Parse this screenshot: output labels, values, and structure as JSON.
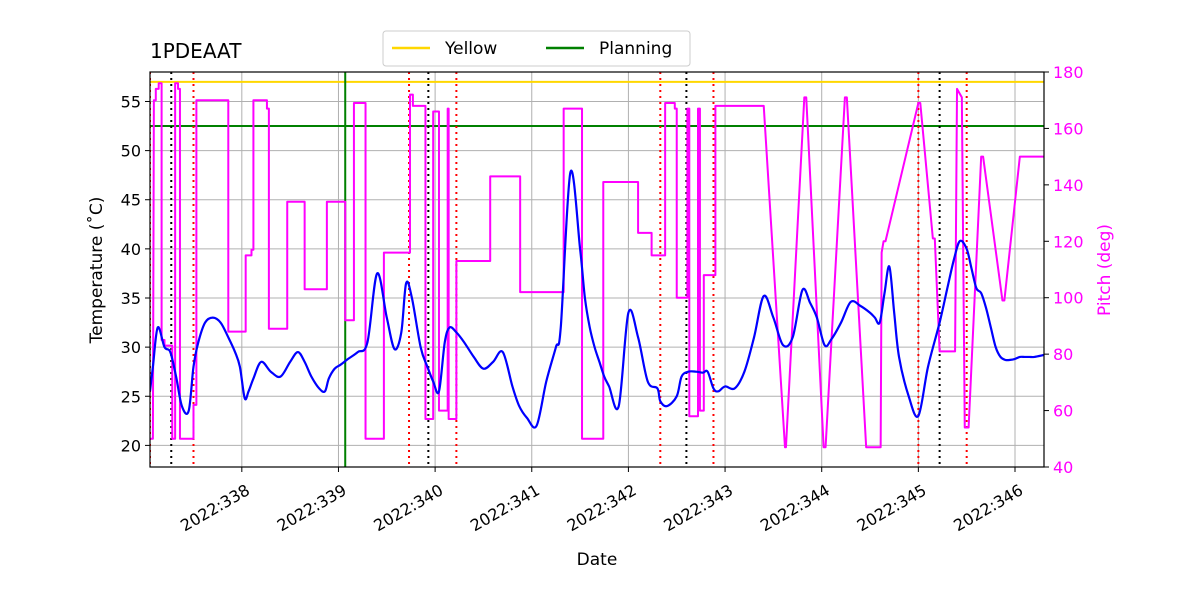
{
  "chart_data": {
    "type": "line",
    "title": "1PDEAAT",
    "xlabel": "Date",
    "ylabel_left": "Temperature ($^\\circ$C)",
    "ylabel_left_display": "Temperature (˚C)",
    "ylabel_right": "Pitch (deg)",
    "xlim": [
      337.05,
      346.3
    ],
    "ylim_left": [
      17.8,
      58
    ],
    "ylim_right": [
      40,
      180
    ],
    "x_ticks": [
      338,
      339,
      340,
      341,
      342,
      343,
      344,
      345,
      346
    ],
    "x_tick_labels": [
      "2022:338",
      "2022:339",
      "2022:340",
      "2022:341",
      "2022:342",
      "2022:343",
      "2022:344",
      "2022:345",
      "2022:346"
    ],
    "y_ticks_left": [
      20,
      25,
      30,
      35,
      40,
      45,
      50,
      55
    ],
    "y_ticks_right": [
      40,
      60,
      80,
      100,
      120,
      140,
      160,
      180
    ],
    "grid": true,
    "legend": {
      "position": "top-center-outside",
      "entries": [
        {
          "name": "Yellow",
          "color": "#ffd700"
        },
        {
          "name": "Planning",
          "color": "#008000"
        }
      ]
    },
    "reference_lines": [
      {
        "name": "Yellow",
        "axis": "left",
        "y": 57,
        "color": "#ffd700"
      },
      {
        "name": "Planning",
        "axis": "left",
        "y": 52.5,
        "color": "#008000"
      }
    ],
    "vertical_lines": {
      "green": {
        "x": [
          339.07
        ],
        "color": "#008000"
      },
      "black_dotted": {
        "x": [
          337.27,
          339.93,
          342.6,
          345.22
        ],
        "color": "#000000"
      },
      "red_dotted": {
        "x": [
          337.05,
          337.5,
          339.73,
          340.22,
          342.33,
          342.88,
          345.0,
          345.5
        ],
        "color": "#ff0000"
      }
    },
    "series": [
      {
        "name": "Temperature",
        "axis": "left",
        "color": "#0000ff",
        "x": [
          337.05,
          337.08,
          337.13,
          337.2,
          337.26,
          337.32,
          337.38,
          337.45,
          337.5,
          337.55,
          337.62,
          337.7,
          337.78,
          337.86,
          337.93,
          337.98,
          338.03,
          338.07,
          338.12,
          338.2,
          338.3,
          338.4,
          338.5,
          338.58,
          338.65,
          338.72,
          338.8,
          338.86,
          338.9,
          338.96,
          339.02,
          339.1,
          339.2,
          339.3,
          339.4,
          339.5,
          339.58,
          339.65,
          339.7,
          339.76,
          339.85,
          339.92,
          339.98,
          340.04,
          340.1,
          340.15,
          340.22,
          340.3,
          340.4,
          340.5,
          340.6,
          340.7,
          340.8,
          340.87,
          340.95,
          341.05,
          341.15,
          341.25,
          341.3,
          341.4,
          341.5,
          341.55,
          341.6,
          341.65,
          341.7,
          341.75,
          341.8,
          341.9,
          342.0,
          342.1,
          342.2,
          342.3,
          342.33,
          342.4,
          342.5,
          342.55,
          342.62,
          342.7,
          342.77,
          342.82,
          342.88,
          342.93,
          343.0,
          343.1,
          343.2,
          343.3,
          343.4,
          343.5,
          343.6,
          343.7,
          343.8,
          343.88,
          343.95,
          344.03,
          344.1,
          344.2,
          344.3,
          344.4,
          344.5,
          344.55,
          344.6,
          344.65,
          344.7,
          344.75,
          344.8,
          344.9,
          345.0,
          345.1,
          345.22,
          345.3,
          345.37,
          345.43,
          345.5,
          345.55,
          345.6,
          345.65,
          345.7,
          345.75,
          345.8,
          345.85,
          345.9,
          345.95,
          346.0,
          346.05,
          346.1,
          346.15,
          346.2,
          346.3
        ],
        "y": [
          25.5,
          28.0,
          32.0,
          30.0,
          29.5,
          27.0,
          24.0,
          23.5,
          28.0,
          30.5,
          32.5,
          33.0,
          32.5,
          31.0,
          29.5,
          28.0,
          24.8,
          25.5,
          26.8,
          28.5,
          27.5,
          27.0,
          28.5,
          29.5,
          28.5,
          27.0,
          25.8,
          25.5,
          26.8,
          27.8,
          28.2,
          28.8,
          29.5,
          30.5,
          37.5,
          33.0,
          29.8,
          31.5,
          36.5,
          35.0,
          30.0,
          28.0,
          26.5,
          25.5,
          30.5,
          32.0,
          31.5,
          30.5,
          29.0,
          27.8,
          28.5,
          29.5,
          26.0,
          24.0,
          22.8,
          22.0,
          26.5,
          30.0,
          32.0,
          47.8,
          40.0,
          35.0,
          32.0,
          30.0,
          28.5,
          27.0,
          26.0,
          24.0,
          33.5,
          31.0,
          26.5,
          25.8,
          24.5,
          24.0,
          25.0,
          27.0,
          27.5,
          27.5,
          27.4,
          27.5,
          25.8,
          25.5,
          26.0,
          25.8,
          27.5,
          31.0,
          35.2,
          33.0,
          30.2,
          31.0,
          35.8,
          34.5,
          33.0,
          30.2,
          30.8,
          32.5,
          34.6,
          34.2,
          33.5,
          33.0,
          32.5,
          35.5,
          38.2,
          33.5,
          29.0,
          25.0,
          23.0,
          28.0,
          32.5,
          36.0,
          39.0,
          40.8,
          40.0,
          38.0,
          36.0,
          35.5,
          34.0,
          32.0,
          30.0,
          29.0,
          28.7,
          28.7,
          28.8,
          29.0,
          29.0,
          29.0,
          29.0,
          29.2
        ],
        "smooth": true
      },
      {
        "name": "Pitch",
        "axis": "right",
        "color": "#ff00ff",
        "x": [
          337.05,
          337.07,
          337.08,
          337.09,
          337.11,
          337.11,
          337.14,
          337.14,
          337.17,
          337.17,
          337.2,
          337.2,
          337.28,
          337.28,
          337.31,
          337.31,
          337.34,
          337.34,
          337.36,
          337.36,
          337.38,
          337.38,
          337.4,
          337.4,
          337.5,
          337.5,
          337.53,
          337.53,
          337.58,
          337.58,
          337.68,
          337.8,
          337.86,
          337.86,
          338.04,
          338.04,
          338.1,
          338.1,
          338.12,
          338.12,
          338.26,
          338.26,
          338.28,
          338.28,
          338.47,
          338.47,
          338.65,
          338.65,
          338.88,
          338.88,
          339.07,
          339.07,
          339.16,
          339.16,
          339.28,
          339.28,
          339.44,
          339.44,
          339.47,
          339.47,
          339.58,
          339.58,
          339.74,
          339.74,
          339.77,
          339.77,
          339.9,
          339.9,
          339.98,
          339.98,
          340.04,
          340.04,
          340.06,
          340.06,
          340.13,
          340.13,
          340.14,
          340.14,
          340.22,
          340.22,
          340.25,
          340.25,
          340.57,
          340.57,
          340.59,
          340.59,
          340.88,
          340.88,
          341.3,
          341.3,
          341.33,
          341.33,
          341.5,
          341.5,
          341.52,
          341.52,
          341.7,
          341.7,
          341.74,
          341.74,
          342.08,
          342.08,
          342.1,
          342.1,
          342.22,
          342.22,
          342.24,
          342.24,
          342.34,
          342.34,
          342.38,
          342.38,
          342.48,
          342.48,
          342.5,
          342.5,
          342.58,
          342.58,
          342.61,
          342.61,
          342.63,
          342.63,
          342.68,
          342.68,
          342.72,
          342.72,
          342.74,
          342.74,
          342.76,
          342.76,
          342.78,
          342.78,
          342.85,
          342.85,
          342.88,
          342.88,
          342.9,
          342.9,
          343.0,
          343.4,
          343.4,
          343.62,
          343.62,
          343.63,
          343.63,
          343.82,
          343.82,
          343.84,
          343.84,
          344.02,
          344.02,
          344.04,
          344.04,
          344.24,
          344.24,
          344.26,
          344.26,
          344.46,
          344.46,
          344.48,
          344.48,
          344.61,
          344.61,
          344.62,
          344.62,
          344.64,
          344.64,
          344.66,
          344.66,
          345.0,
          345.0,
          345.02,
          345.02,
          345.15,
          345.15,
          345.17,
          345.17,
          345.22,
          345.22,
          345.38,
          345.38,
          345.4,
          345.4,
          345.45,
          345.45,
          345.48,
          345.48,
          345.52,
          345.52,
          345.65,
          345.65,
          345.67,
          345.67,
          345.87,
          345.87,
          345.89,
          345.89,
          346.05,
          346.05,
          346.1,
          346.1,
          346.3
        ],
        "y": [
          50,
          50,
          50,
          170,
          170,
          174,
          174,
          176,
          176,
          85,
          85,
          83,
          83,
          50,
          50,
          176,
          176,
          174,
          174,
          50,
          50,
          50,
          50,
          50,
          50,
          62,
          62,
          170,
          170,
          170,
          170,
          170,
          170,
          88,
          88,
          115,
          115,
          117,
          117,
          170,
          170,
          167,
          167,
          89,
          89,
          134,
          134,
          103,
          103,
          134,
          134,
          92,
          92,
          169,
          169,
          50,
          50,
          50,
          50,
          116,
          116,
          116,
          116,
          172,
          172,
          168,
          168,
          57,
          57,
          166,
          166,
          60,
          60,
          60,
          60,
          167,
          167,
          57,
          57,
          113,
          113,
          113,
          113,
          143,
          143,
          143,
          143,
          102,
          102,
          102,
          102,
          167,
          167,
          167,
          167,
          50,
          50,
          50,
          50,
          141,
          141,
          141,
          141,
          123,
          123,
          123,
          123,
          115,
          115,
          115,
          115,
          169,
          169,
          167,
          167,
          100,
          100,
          100,
          100,
          167,
          167,
          58,
          58,
          58,
          58,
          167,
          167,
          60,
          60,
          60,
          60,
          108,
          108,
          108,
          108,
          108,
          108,
          168,
          168,
          168,
          168,
          47,
          47,
          47,
          47,
          171,
          171,
          171,
          171,
          47,
          47,
          47,
          47,
          171,
          171,
          171,
          171,
          47,
          47,
          47,
          47,
          47,
          47,
          116,
          116,
          120,
          120,
          120,
          120,
          169,
          169,
          169,
          169,
          121,
          121,
          121,
          121,
          81,
          81,
          81,
          81,
          174,
          174,
          171,
          171,
          54,
          54,
          54,
          54,
          150,
          150,
          150,
          150,
          99,
          99,
          99,
          99,
          150,
          150,
          150,
          150,
          150
        ]
      }
    ]
  }
}
